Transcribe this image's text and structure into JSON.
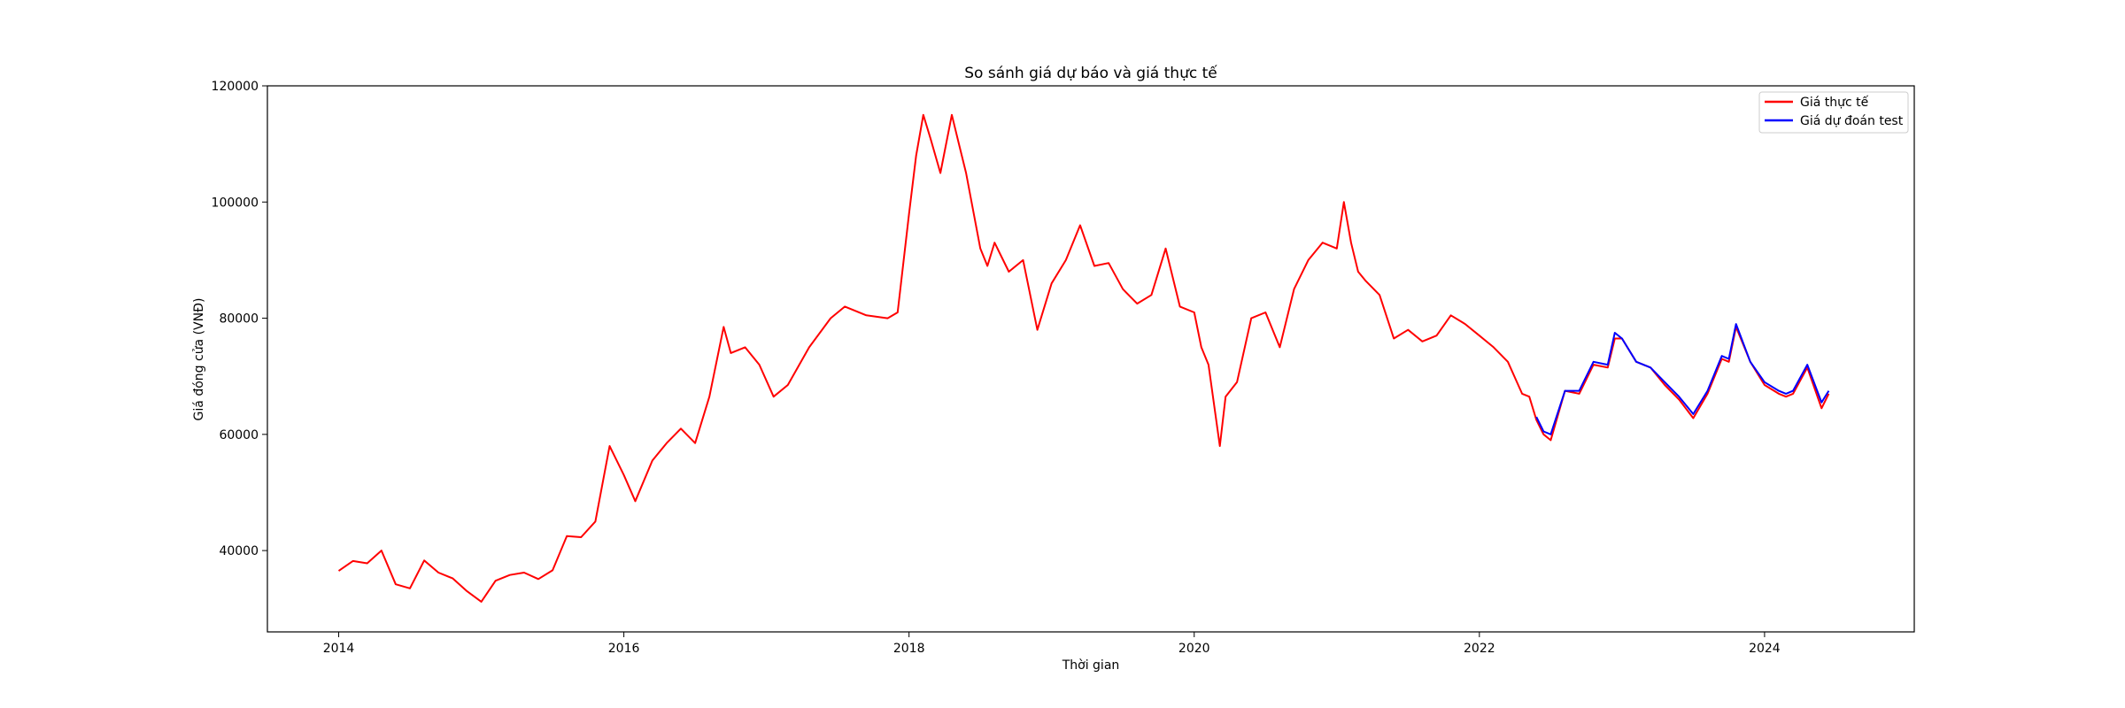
{
  "chart_data": {
    "type": "line",
    "title": "So sánh giá dự báo và giá thực tế",
    "xlabel": "Thời gian",
    "ylabel": "Giá đóng cửa (VNĐ)",
    "xlim": [
      2013.5,
      2025.05
    ],
    "ylim": [
      26000,
      120000
    ],
    "x_ticks": [
      2014,
      2016,
      2018,
      2020,
      2022,
      2024
    ],
    "x_tick_labels": [
      "2014",
      "2016",
      "2018",
      "2020",
      "2022",
      "2024"
    ],
    "y_ticks": [
      40000,
      60000,
      80000,
      100000,
      120000
    ],
    "y_tick_labels": [
      "40000",
      "60000",
      "80000",
      "100000",
      "120000"
    ],
    "legend_position": "top-right",
    "series": [
      {
        "name": "Giá thực tế",
        "color": "#ff0000",
        "x": [
          2014.0,
          2014.1,
          2014.2,
          2014.3,
          2014.4,
          2014.5,
          2014.6,
          2014.7,
          2014.8,
          2014.9,
          2015.0,
          2015.1,
          2015.2,
          2015.3,
          2015.4,
          2015.5,
          2015.6,
          2015.7,
          2015.8,
          2015.9,
          2016.0,
          2016.08,
          2016.2,
          2016.3,
          2016.4,
          2016.5,
          2016.6,
          2016.7,
          2016.75,
          2016.85,
          2016.95,
          2017.05,
          2017.15,
          2017.3,
          2017.45,
          2017.55,
          2017.7,
          2017.85,
          2017.92,
          2018.0,
          2018.05,
          2018.1,
          2018.15,
          2018.22,
          2018.3,
          2018.35,
          2018.4,
          2018.5,
          2018.55,
          2018.6,
          2018.7,
          2018.8,
          2018.9,
          2019.0,
          2019.1,
          2019.2,
          2019.3,
          2019.4,
          2019.5,
          2019.6,
          2019.7,
          2019.8,
          2019.9,
          2020.0,
          2020.05,
          2020.1,
          2020.18,
          2020.22,
          2020.3,
          2020.4,
          2020.5,
          2020.6,
          2020.7,
          2020.8,
          2020.9,
          2021.0,
          2021.05,
          2021.1,
          2021.15,
          2021.2,
          2021.3,
          2021.4,
          2021.5,
          2021.6,
          2021.7,
          2021.8,
          2021.9,
          2022.0,
          2022.1,
          2022.2,
          2022.3,
          2022.35,
          2022.4,
          2022.45,
          2022.5,
          2022.6,
          2022.7,
          2022.8,
          2022.9,
          2022.95,
          2023.0,
          2023.1,
          2023.2,
          2023.3,
          2023.4,
          2023.5,
          2023.6,
          2023.7,
          2023.75,
          2023.8,
          2023.9,
          2024.0,
          2024.1,
          2024.15,
          2024.2,
          2024.3,
          2024.4,
          2024.45
        ],
        "y": [
          36500,
          38200,
          37800,
          40000,
          34200,
          33500,
          38300,
          36200,
          35200,
          33000,
          31200,
          34800,
          35800,
          36200,
          35100,
          36600,
          42500,
          42300,
          45000,
          58000,
          53000,
          48500,
          55500,
          58500,
          61000,
          58500,
          66500,
          78500,
          74000,
          75000,
          72000,
          66500,
          68500,
          75000,
          80000,
          82000,
          80500,
          80000,
          81000,
          98000,
          108000,
          115000,
          111000,
          105000,
          115000,
          110000,
          105000,
          92000,
          89000,
          93000,
          88000,
          90000,
          78000,
          86000,
          90000,
          96000,
          89000,
          89500,
          85000,
          82500,
          84000,
          92000,
          82000,
          81000,
          75000,
          72000,
          58000,
          66500,
          69000,
          80000,
          81000,
          75000,
          85000,
          90000,
          93000,
          92000,
          100000,
          93000,
          88000,
          86500,
          84000,
          76500,
          78000,
          76000,
          77000,
          80500,
          79000,
          77000,
          75000,
          72500,
          67000,
          66500,
          62500,
          60000,
          59000,
          67500,
          67000,
          72000,
          71500,
          76500,
          76500,
          72500,
          71500,
          68500,
          66000,
          62800,
          67000,
          73000,
          72500,
          78500,
          72500,
          68500,
          67000,
          66500,
          67000,
          71500,
          64500,
          67000
        ]
      },
      {
        "name": "Giá dự đoán test",
        "color": "#0000ff",
        "x": [
          2022.4,
          2022.45,
          2022.5,
          2022.6,
          2022.7,
          2022.8,
          2022.9,
          2022.95,
          2023.0,
          2023.1,
          2023.2,
          2023.3,
          2023.4,
          2023.5,
          2023.6,
          2023.7,
          2023.75,
          2023.8,
          2023.9,
          2024.0,
          2024.1,
          2024.15,
          2024.2,
          2024.3,
          2024.4,
          2024.45
        ],
        "y": [
          63000,
          60500,
          60000,
          67500,
          67500,
          72500,
          72000,
          77500,
          76500,
          72500,
          71500,
          69000,
          66500,
          63500,
          67500,
          73500,
          73000,
          79000,
          72500,
          69000,
          67500,
          67000,
          67500,
          72000,
          65500,
          67500
        ]
      }
    ]
  }
}
